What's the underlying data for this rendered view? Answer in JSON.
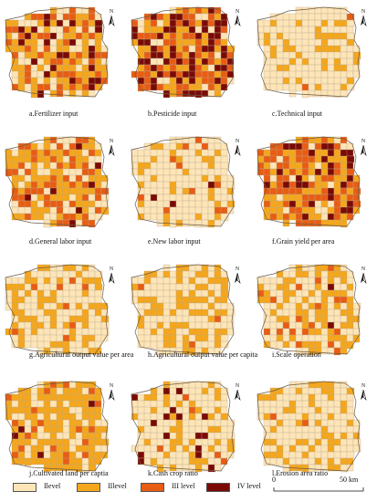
{
  "panels": [
    {
      "caption": "a.Fertilizer input",
      "weights": [
        0.25,
        0.38,
        0.22,
        0.15
      ]
    },
    {
      "caption": "b.Pesticide input",
      "weights": [
        0.1,
        0.3,
        0.3,
        0.3
      ]
    },
    {
      "caption": "c.Technical input",
      "weights": [
        0.8,
        0.18,
        0.02,
        0.0
      ]
    },
    {
      "caption": "d.General labor input",
      "weights": [
        0.2,
        0.52,
        0.25,
        0.03
      ]
    },
    {
      "caption": "e.New labor input",
      "weights": [
        0.72,
        0.22,
        0.05,
        0.01
      ]
    },
    {
      "caption": "f.Grain yield per area",
      "weights": [
        0.1,
        0.42,
        0.33,
        0.15
      ]
    },
    {
      "caption": "g.Agricultural output value per area",
      "weights": [
        0.55,
        0.4,
        0.04,
        0.01
      ]
    },
    {
      "caption": "h.Agricultural output value per capita",
      "weights": [
        0.58,
        0.39,
        0.03,
        0.0
      ]
    },
    {
      "caption": "i.Scale operation",
      "weights": [
        0.5,
        0.38,
        0.1,
        0.02
      ]
    },
    {
      "caption": "j.Cultivated land per captia",
      "weights": [
        0.25,
        0.68,
        0.06,
        0.01
      ]
    },
    {
      "caption": "k.Cash crop ratio",
      "weights": [
        0.62,
        0.25,
        0.06,
        0.07
      ]
    },
    {
      "caption": "l.Erosion area ratio",
      "weights": [
        0.72,
        0.27,
        0.01,
        0.0
      ]
    }
  ],
  "north_letter": "N",
  "legend": [
    {
      "label": "Ilevel",
      "color": "#fde5b8"
    },
    {
      "label": "IIlevel",
      "color": "#f5a61b"
    },
    {
      "label": "III level",
      "color": "#e85c13"
    },
    {
      "label": "IV level",
      "color": "#7a0a06"
    }
  ],
  "scalebar": {
    "start_label": "0",
    "end_label": "50 km"
  }
}
